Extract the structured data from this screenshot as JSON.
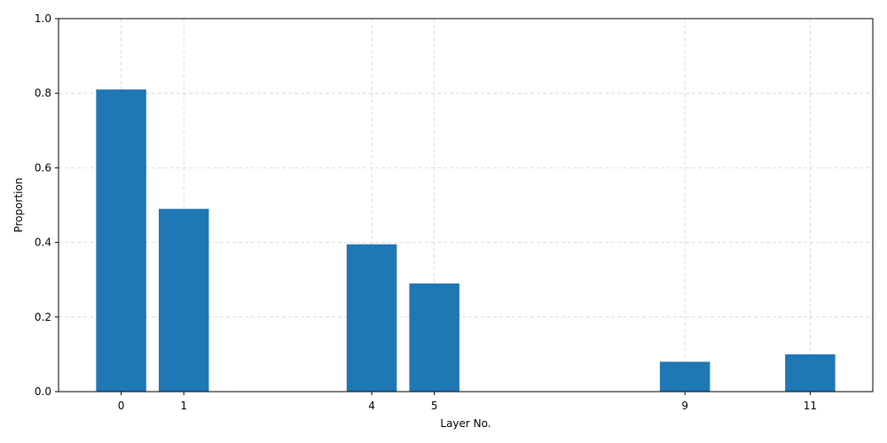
{
  "chart_data": {
    "type": "bar",
    "x": [
      0,
      1,
      4,
      5,
      9,
      11
    ],
    "values": [
      0.81,
      0.49,
      0.395,
      0.29,
      0.08,
      0.1
    ],
    "xlabel": "Layer No.",
    "ylabel": "Proportion",
    "xticks": [
      "0",
      "1",
      "4",
      "5",
      "9",
      "11"
    ],
    "yticks": [
      "0.0",
      "0.2",
      "0.4",
      "0.6",
      "0.8",
      "1.0"
    ],
    "xlim": [
      -1,
      12
    ],
    "ylim": [
      0,
      1
    ],
    "grid": true,
    "bar_color": "#1f77b4"
  }
}
